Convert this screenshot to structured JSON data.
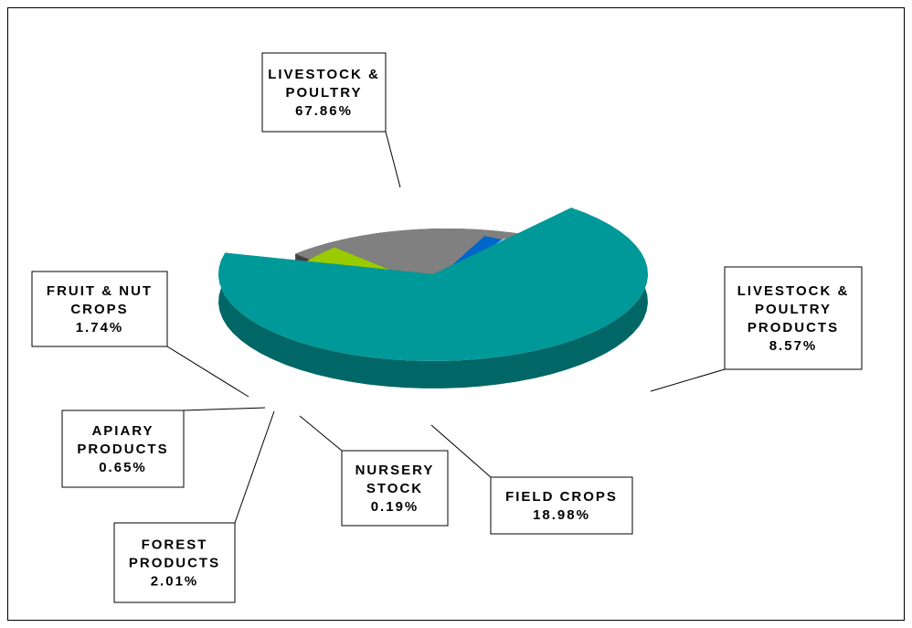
{
  "chart_data": {
    "type": "pie",
    "title": "",
    "slices": [
      {
        "label_lines": [
          "LIVESTOCK &",
          "POULTRY"
        ],
        "value": 67.86,
        "display": "67.86%",
        "color": "#009999",
        "side": "#006666"
      },
      {
        "label_lines": [
          "LIVESTOCK &",
          "POULTRY",
          "PRODUCTS"
        ],
        "value": 8.57,
        "display": "8.57%",
        "color": "#99cc00",
        "side": "#4d6600"
      },
      {
        "label_lines": [
          "FIELD CROPS"
        ],
        "value": 18.98,
        "display": "18.98%",
        "color": "#808080",
        "side": "#404040"
      },
      {
        "label_lines": [
          "NURSERY",
          "STOCK"
        ],
        "value": 0.19,
        "display": "0.19%",
        "color": "#000000",
        "side": "#000000"
      },
      {
        "label_lines": [
          "FOREST",
          "PRODUCTS"
        ],
        "value": 2.01,
        "display": "2.01%",
        "color": "#0066cc",
        "side": "#003f8a"
      },
      {
        "label_lines": [
          "APIARY",
          "PRODUCTS"
        ],
        "value": 0.65,
        "display": "0.65%",
        "color": "#99ccff",
        "side": "#6688aa"
      },
      {
        "label_lines": [
          "FRUIT & NUT",
          "CROPS"
        ],
        "value": 1.74,
        "display": "1.74%",
        "color": "#333399",
        "side": "#1a1a66"
      }
    ],
    "style": "3d-exploded",
    "legend": "none"
  }
}
